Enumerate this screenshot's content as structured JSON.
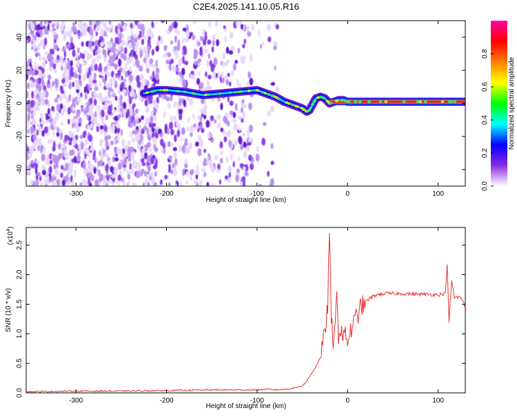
{
  "title": "C2E4.2025.141.10.05.R16",
  "chart_data": [
    {
      "type": "heatmap",
      "xlabel": "Height of straight line (km)",
      "ylabel": "Frequency (Hz)",
      "xlim": [
        -355,
        130
      ],
      "ylim": [
        -50,
        50
      ],
      "xticks": [
        -300,
        -200,
        -100,
        0,
        100
      ],
      "yticks": [
        -40,
        -20,
        0,
        20,
        40
      ],
      "colorbar": {
        "label": "Normalized spectral amplitude",
        "range": [
          0,
          1
        ],
        "ticks": [
          "0.0",
          "0.2",
          "0.4",
          "0.6",
          "0.8"
        ],
        "colors": [
          "#ffffff",
          "#8a2be2",
          "#0000ff",
          "#00ffff",
          "#00ff00",
          "#ffff00",
          "#ff8000",
          "#ff0000",
          "#ff00a0"
        ]
      },
      "ridge": {
        "x": [
          -225,
          -210,
          -200,
          -180,
          -160,
          -140,
          -120,
          -100,
          -90,
          -80,
          -70,
          -60,
          -50,
          -45,
          -42,
          -38,
          -35,
          -30,
          -25,
          -20,
          -15,
          -10,
          -5,
          0,
          10,
          40,
          80,
          110,
          130
        ],
        "y": [
          6,
          8,
          8,
          7,
          5,
          6,
          7,
          8,
          6,
          4,
          1,
          -1,
          -3,
          -5,
          -4,
          0,
          3,
          4,
          3,
          0,
          1,
          2,
          2,
          1,
          1,
          1,
          1,
          1,
          1
        ]
      },
      "grid": false,
      "legend": "none"
    },
    {
      "type": "line",
      "xlabel": "Height of straight line (km)",
      "ylabel": "SNR (10 * v/v)",
      "yscale_label": "(x10",
      "yscale_exp": "4",
      "xlim": [
        -355,
        130
      ],
      "ylim": [
        0,
        2.8
      ],
      "xticks": [
        -300,
        -200,
        -100,
        0,
        100
      ],
      "yticks": [
        "0.0",
        "0.5",
        "1.0",
        "1.5",
        "2.0",
        "2.5"
      ],
      "color": "#e83030",
      "x": [
        -355,
        -300,
        -250,
        -200,
        -150,
        -100,
        -90,
        -80,
        -70,
        -60,
        -50,
        -45,
        -40,
        -35,
        -30,
        -25,
        -22,
        -20,
        -18,
        -15,
        -12,
        -10,
        -8,
        -5,
        0,
        5,
        10,
        15,
        20,
        25,
        30,
        40,
        60,
        80,
        100,
        108,
        110,
        112,
        115,
        118,
        120,
        125,
        130
      ],
      "y": [
        0.02,
        0.03,
        0.03,
        0.04,
        0.05,
        0.05,
        0.06,
        0.05,
        0.06,
        0.08,
        0.12,
        0.2,
        0.32,
        0.45,
        0.6,
        1.0,
        1.5,
        2.75,
        1.2,
        0.8,
        1.6,
        1.0,
        1.1,
        1.0,
        0.9,
        1.1,
        1.3,
        1.45,
        1.55,
        1.6,
        1.65,
        1.68,
        1.68,
        1.67,
        1.66,
        1.68,
        2.2,
        1.2,
        1.9,
        1.6,
        1.62,
        1.62,
        1.45
      ],
      "grid": false,
      "legend": "none"
    }
  ]
}
